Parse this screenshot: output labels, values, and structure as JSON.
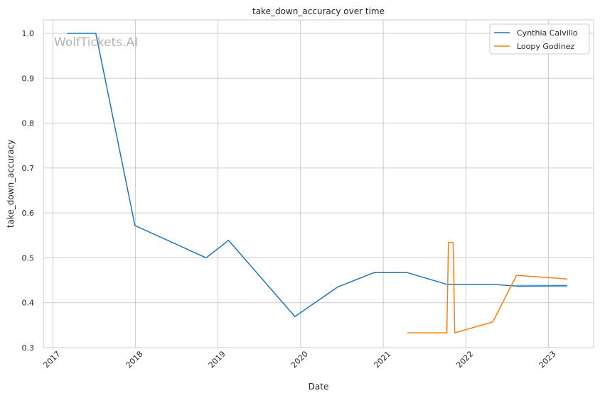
{
  "chart_data": {
    "type": "line",
    "title": "take_down_accuracy over time",
    "xlabel": "Date",
    "ylabel": "take_down_accuracy",
    "watermark": "WolfTickets.AI",
    "xlim": [
      "2016-11-20",
      "2023-07-20"
    ],
    "ylim": [
      0.3,
      1.03
    ],
    "x_ticks": [
      "2017",
      "2018",
      "2019",
      "2020",
      "2021",
      "2022",
      "2023"
    ],
    "y_ticks": [
      "0.3",
      "0.4",
      "0.5",
      "0.6",
      "0.7",
      "0.8",
      "0.9",
      "1.0"
    ],
    "grid": true,
    "legend_position": "top-right",
    "series": [
      {
        "name": "Cynthia Calvillo",
        "color": "#1f77b4",
        "points": [
          {
            "x": "2017-03-05",
            "y": 1.0
          },
          {
            "x": "2017-07-10",
            "y": 1.0
          },
          {
            "x": "2017-12-30",
            "y": 0.572
          },
          {
            "x": "2018-11-10",
            "y": 0.5
          },
          {
            "x": "2019-02-17",
            "y": 0.539
          },
          {
            "x": "2019-12-07",
            "y": 0.369
          },
          {
            "x": "2020-06-13",
            "y": 0.435
          },
          {
            "x": "2020-11-21",
            "y": 0.467
          },
          {
            "x": "2021-04-17",
            "y": 0.467
          },
          {
            "x": "2021-10-09",
            "y": 0.441
          },
          {
            "x": "2022-04-30",
            "y": 0.441
          },
          {
            "x": "2022-08-13",
            "y": 0.437
          },
          {
            "x": "2023-03-25",
            "y": 0.438
          }
        ],
        "band": {
          "x_start": "2022-08-13",
          "x_end": "2023-03-25",
          "low": 0.434,
          "high": 0.441
        }
      },
      {
        "name": "Loopy Godinez",
        "color": "#ff7f0e",
        "points": [
          {
            "x": "2021-04-17",
            "y": 0.333
          },
          {
            "x": "2021-10-09",
            "y": 0.333
          },
          {
            "x": "2021-10-16",
            "y": 0.534
          },
          {
            "x": "2021-11-06",
            "y": 0.534
          },
          {
            "x": "2021-11-13",
            "y": 0.333
          },
          {
            "x": "2022-04-30",
            "y": 0.357
          },
          {
            "x": "2022-08-13",
            "y": 0.461
          },
          {
            "x": "2023-03-25",
            "y": 0.453
          }
        ]
      }
    ]
  }
}
